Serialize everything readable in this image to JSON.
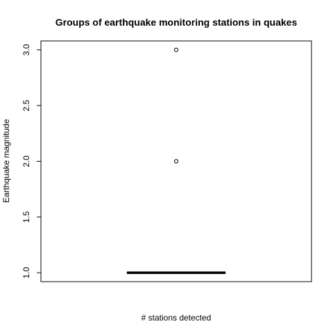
{
  "chart_data": {
    "type": "boxplot",
    "title": "Groups of earthquake monitoring stations in quakes",
    "xlabel": "# stations detected",
    "ylabel": "Earthquake magnitude",
    "ylim": [
      0.92,
      3.08
    ],
    "yticks": [
      1.0,
      1.5,
      2.0,
      2.5,
      3.0
    ],
    "ytick_labels": [
      "1.0",
      "1.5",
      "2.0",
      "2.5",
      "3.0"
    ],
    "grid": false,
    "box": {
      "min": 1.0,
      "q1": 1.0,
      "median": 1.0,
      "q3": 1.0,
      "max": 1.0
    },
    "outliers": [
      2.0,
      3.0
    ],
    "colors": {
      "line": "#000000",
      "background": "#ffffff"
    }
  }
}
